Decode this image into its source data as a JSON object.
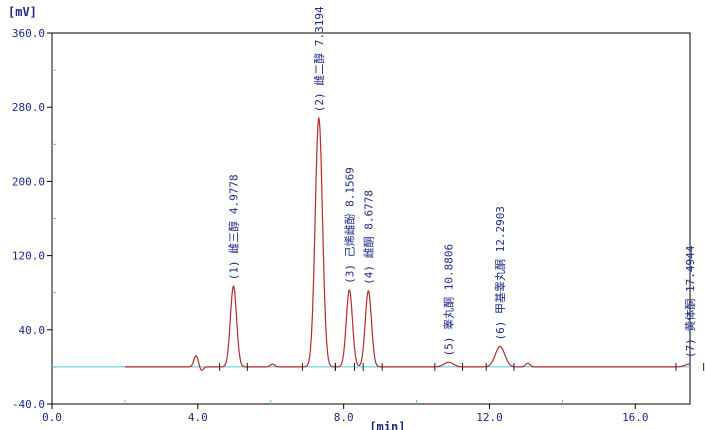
{
  "chart_data": {
    "type": "line",
    "title": "",
    "xlabel": "[min]",
    "ylabel": "[mV]",
    "xlim": [
      0.0,
      17.5
    ],
    "ylim": [
      -40.0,
      360.0
    ],
    "x_ticks": [
      0.0,
      4.0,
      8.0,
      12.0,
      16.0
    ],
    "x_tick_labels": [
      "0.0",
      "4.0",
      "8.0",
      "12.0",
      "16.0"
    ],
    "y_ticks": [
      -40.0,
      40.0,
      120.0,
      200.0,
      280.0,
      360.0
    ],
    "y_tick_labels": [
      "-40.0",
      "40.0",
      "120.0",
      "200.0",
      "280.0",
      "360.0"
    ],
    "baseline": 0,
    "colors": {
      "trace": "#b52a2a",
      "baseline": "#4fc8d8",
      "text": "#1a2a8a",
      "frame": "#000000",
      "axis_minor": "#4fc8d8"
    },
    "peaks": [
      {
        "id": "(1)",
        "name": "雌三醇",
        "rt": 4.9778,
        "rt_label": "4.9778",
        "height": 87
      },
      {
        "id": "(2)",
        "name": "雌二醇",
        "rt": 7.3194,
        "rt_label": "7.3194",
        "height": 268
      },
      {
        "id": "(3)",
        "name": "己烯雌酚",
        "rt": 8.1569,
        "rt_label": "8.1569",
        "height": 83
      },
      {
        "id": "(4)",
        "name": "雌酮",
        "rt": 8.6778,
        "rt_label": "8.6778",
        "height": 82
      },
      {
        "id": "(5)",
        "name": "睾丸酮",
        "rt": 10.8806,
        "rt_label": "10.8806",
        "height": 5
      },
      {
        "id": "(6)",
        "name": "甲基睾丸酮",
        "rt": 12.2903,
        "rt_label": "12.2903",
        "height": 22
      },
      {
        "id": "(7)",
        "name": "黄体酮",
        "rt": 17.4944,
        "rt_label": "17.4944",
        "height": 3
      }
    ],
    "minor_peaks": [
      {
        "rt": 3.95,
        "height": 12
      },
      {
        "rt": 6.05,
        "height": 3
      },
      {
        "rt": 13.05,
        "height": 4
      }
    ]
  }
}
